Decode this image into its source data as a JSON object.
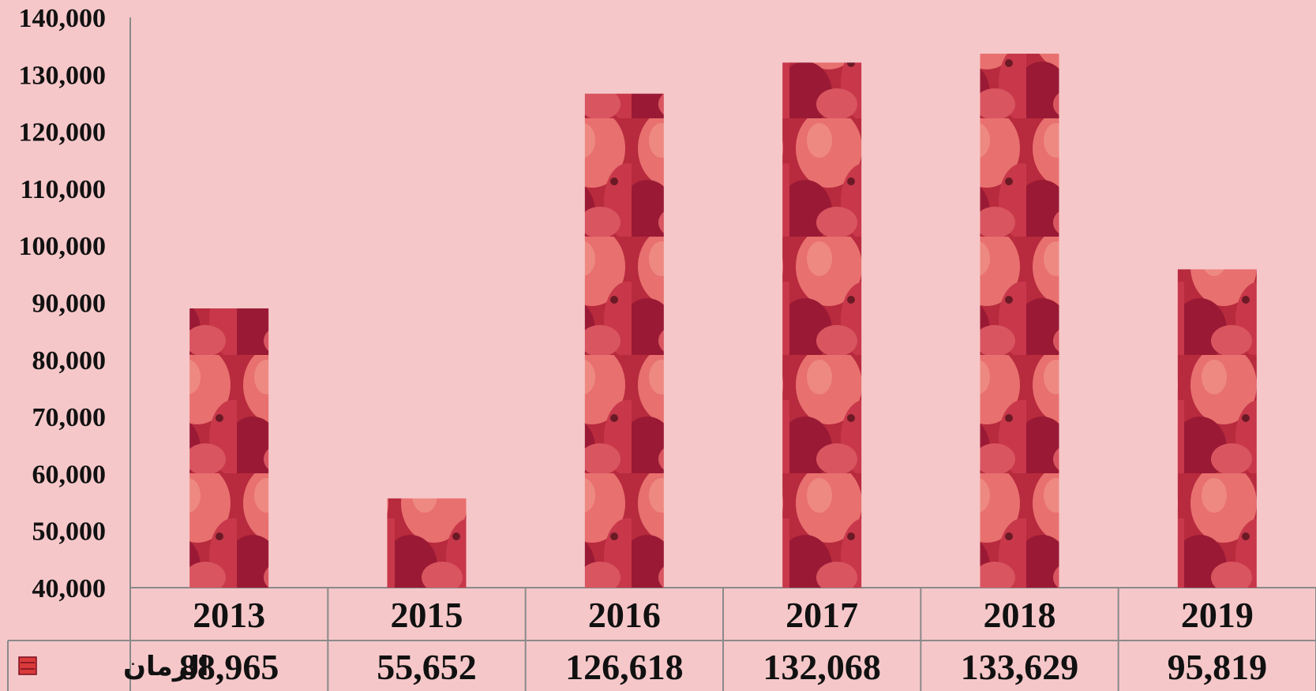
{
  "chart_data": {
    "type": "bar",
    "categories": [
      "2013",
      "2015",
      "2016",
      "2017",
      "2018",
      "2019"
    ],
    "series": [
      {
        "name": "الرمان",
        "values": [
          88965,
          55652,
          126618,
          132068,
          133629,
          95819
        ]
      }
    ],
    "value_labels": [
      "88,965",
      "55,652",
      "126,618",
      "132,068",
      "133,629",
      "95,819"
    ],
    "ylim": [
      40000,
      140000
    ],
    "yticks": [
      "40,000",
      "50,000",
      "60,000",
      "70,000",
      "80,000",
      "90,000",
      "100,000",
      "110,000",
      "120,000",
      "130,000",
      "140,000"
    ],
    "ytick_values": [
      40000,
      50000,
      60000,
      70000,
      80000,
      90000,
      100000,
      110000,
      120000,
      130000,
      140000
    ],
    "grid": false,
    "legend": "data-table",
    "colors": {
      "background": "#f6c7c9",
      "bar_light": "#e8706f",
      "bar_mid": "#d13b45",
      "bar_dark": "#8e1530",
      "axis": "#8a8a8a",
      "legend_key": "#d93a3a"
    }
  }
}
